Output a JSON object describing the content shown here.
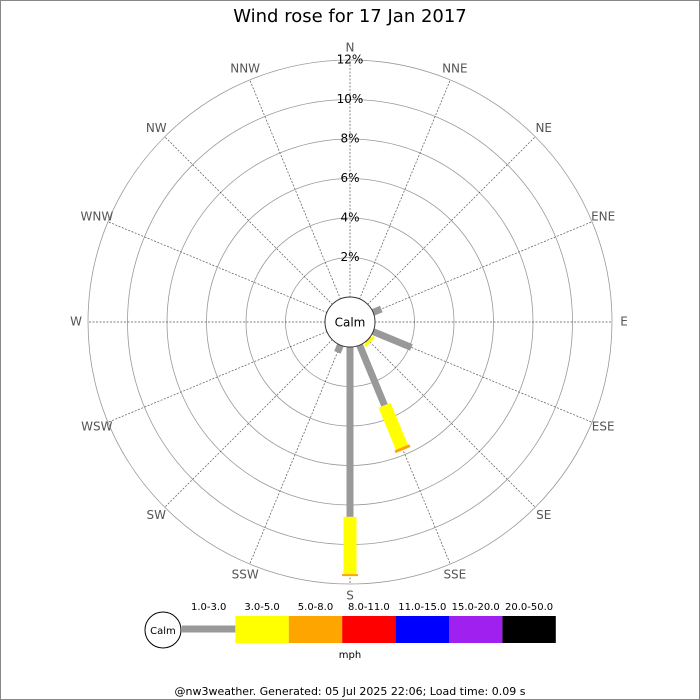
{
  "chart_data": {
    "type": "windrose",
    "title": "Wind rose for 17 Jan 2017",
    "directions": [
      "N",
      "NNE",
      "NE",
      "ENE",
      "E",
      "ESE",
      "SE",
      "SSE",
      "S",
      "SSW",
      "SW",
      "WSW",
      "W",
      "WNW",
      "NW",
      "NNW"
    ],
    "rlim": [
      0,
      12
    ],
    "rticks": [
      {
        "value": 2,
        "label": "2%"
      },
      {
        "value": 4,
        "label": "4%"
      },
      {
        "value": 6,
        "label": "6%"
      },
      {
        "value": 8,
        "label": "8%"
      },
      {
        "value": 10,
        "label": "10%"
      },
      {
        "value": 12,
        "label": "12%"
      }
    ],
    "calm_label": "Calm",
    "units": "mph",
    "series": [
      {
        "name": "1.0-3.0",
        "color": "#999999",
        "values": [
          0,
          0,
          0,
          0.45,
          0,
          2.1,
          0.05,
          3.3,
          8.6,
          0.4,
          0,
          0,
          0,
          0,
          0,
          0
        ]
      },
      {
        "name": "3.0-5.0",
        "color": "#ffff00",
        "values": [
          0,
          0,
          0,
          0,
          0,
          0,
          0.15,
          2.3,
          2.9,
          0,
          0,
          0,
          0,
          0,
          0,
          0
        ]
      },
      {
        "name": "5.0-8.0",
        "color": "#ffa500",
        "values": [
          0,
          0,
          0,
          0,
          0,
          0,
          0,
          0.15,
          0.1,
          0,
          0,
          0,
          0,
          0,
          0,
          0
        ]
      },
      {
        "name": "8.0-11.0",
        "color": "#ff0000",
        "values": [
          0,
          0,
          0,
          0,
          0,
          0,
          0,
          0,
          0,
          0,
          0,
          0,
          0,
          0,
          0,
          0
        ]
      },
      {
        "name": "11.0-15.0",
        "color": "#0000ff",
        "values": [
          0,
          0,
          0,
          0,
          0,
          0,
          0,
          0,
          0,
          0,
          0,
          0,
          0,
          0,
          0,
          0
        ]
      },
      {
        "name": "15.0-20.0",
        "color": "#a020f0",
        "values": [
          0,
          0,
          0,
          0,
          0,
          0,
          0,
          0,
          0,
          0,
          0,
          0,
          0,
          0,
          0,
          0
        ]
      },
      {
        "name": "20.0-50.0",
        "color": "#000000",
        "values": [
          0,
          0,
          0,
          0,
          0,
          0,
          0,
          0,
          0,
          0,
          0,
          0,
          0,
          0,
          0,
          0
        ]
      }
    ],
    "footer": "@nw3weather.  Generated: 05 Jul 2025 22:06; Load time: 0.09 s"
  }
}
